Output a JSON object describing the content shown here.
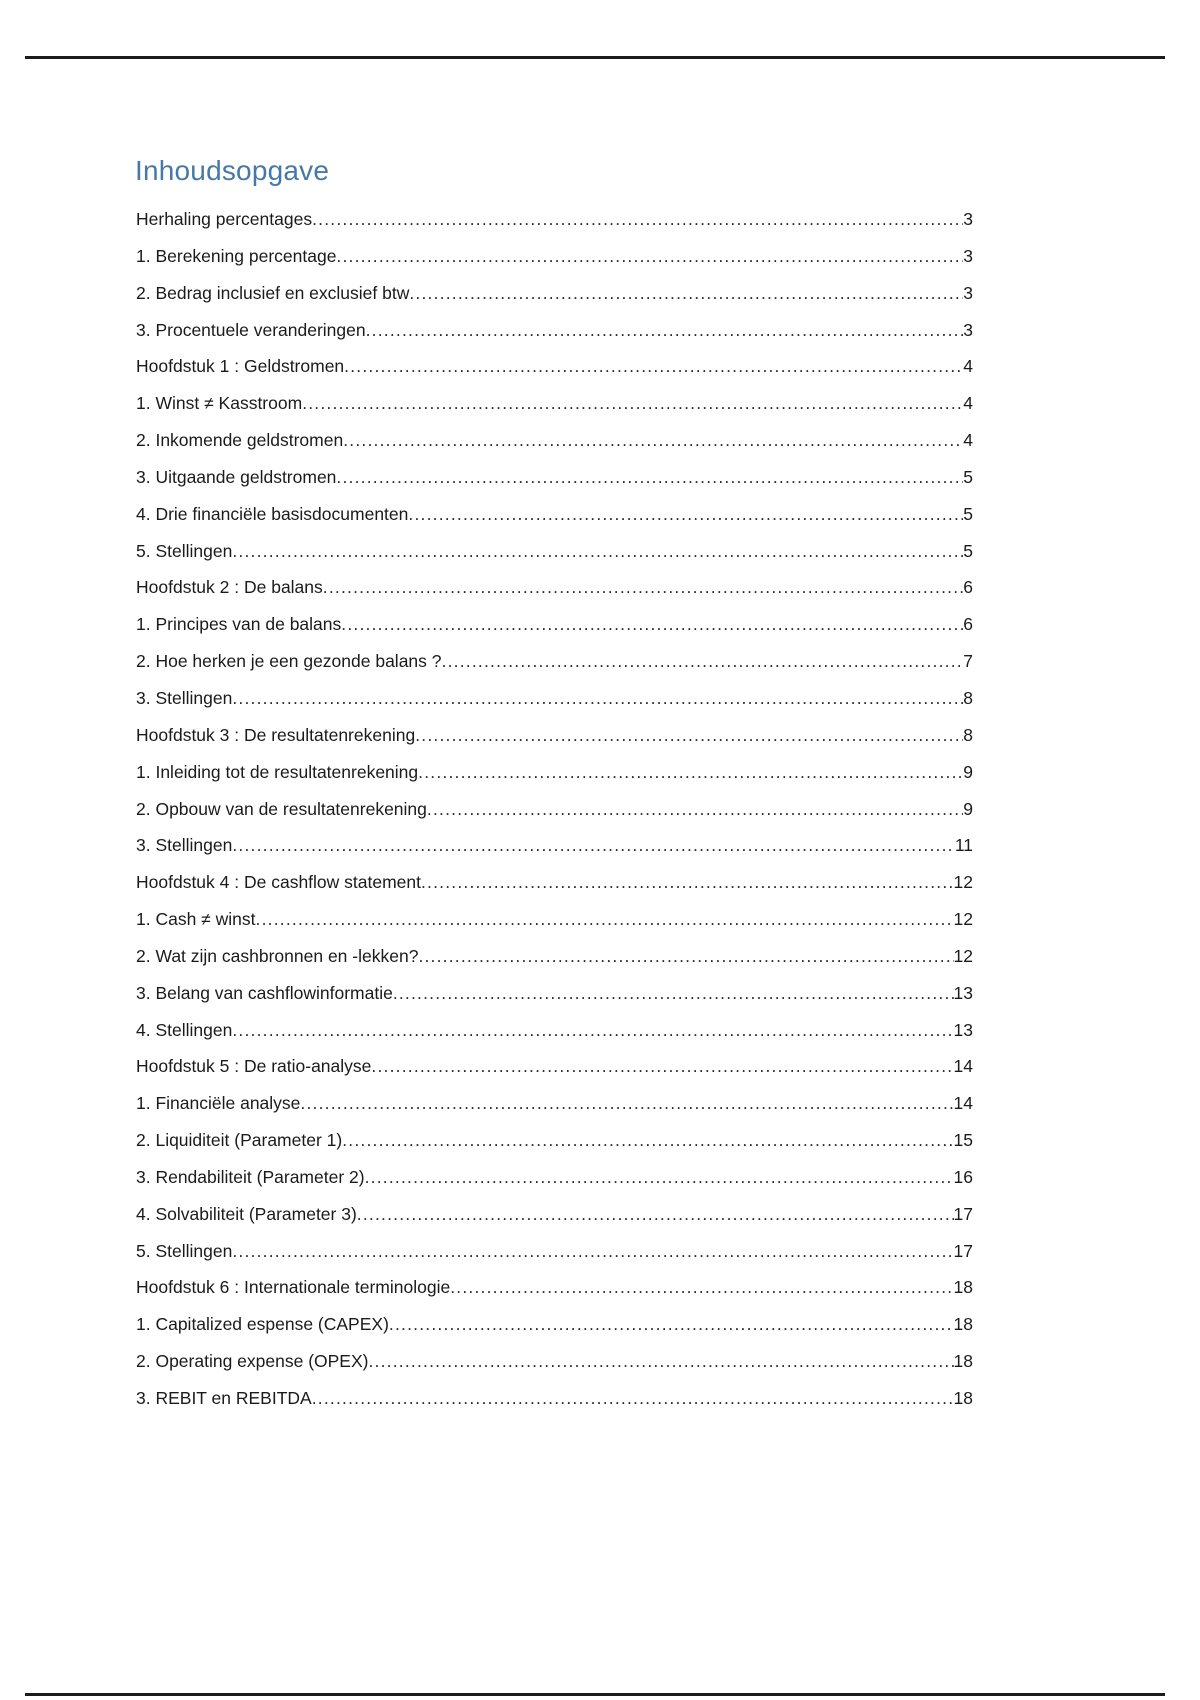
{
  "page": {
    "title": "Inhoudsopgave",
    "title_color": "#4678A8",
    "text_color": "#1b1b1b",
    "rule_color": "#1c1c1c"
  },
  "toc": {
    "entries": [
      {
        "label": "Herhaling percentages",
        "page": "3"
      },
      {
        "label": "1. Berekening percentage",
        "page": "3"
      },
      {
        "label": "2. Bedrag inclusief en exclusief btw",
        "page": "3"
      },
      {
        "label": "3. Procentuele veranderingen",
        "page": "3"
      },
      {
        "label": "Hoofdstuk 1 : Geldstromen",
        "page": "4"
      },
      {
        "label": "1. Winst ≠ Kasstroom",
        "page": "4"
      },
      {
        "label": "2. Inkomende geldstromen",
        "page": "4"
      },
      {
        "label": "3. Uitgaande geldstromen",
        "page": "5"
      },
      {
        "label": "4. Drie financiële basisdocumenten",
        "page": "5"
      },
      {
        "label": "5. Stellingen",
        "page": "5"
      },
      {
        "label": "Hoofdstuk 2 : De balans",
        "page": "6"
      },
      {
        "label": "1. Principes van de balans",
        "page": "6"
      },
      {
        "label": "2. Hoe herken je een gezonde balans ?",
        "page": "7"
      },
      {
        "label": "3. Stellingen",
        "page": "8"
      },
      {
        "label": "Hoofdstuk 3 : De resultatenrekening",
        "page": "8"
      },
      {
        "label": "1. Inleiding tot de resultatenrekening",
        "page": "9"
      },
      {
        "label": "2. Opbouw van de resultatenrekening",
        "page": "9"
      },
      {
        "label": "3. Stellingen",
        "page": "11"
      },
      {
        "label": "Hoofdstuk 4 : De cashflow statement",
        "page": "12"
      },
      {
        "label": "1. Cash ≠ winst",
        "page": "12"
      },
      {
        "label": "2. Wat zijn cashbronnen en -lekken?",
        "page": "12"
      },
      {
        "label": "3. Belang van cashflowinformatie",
        "page": "13"
      },
      {
        "label": "4. Stellingen",
        "page": "13"
      },
      {
        "label": "Hoofdstuk 5 : De ratio-analyse",
        "page": "14"
      },
      {
        "label": "1. Financiële analyse",
        "page": "14"
      },
      {
        "label": "2. Liquiditeit (Parameter 1)",
        "page": "15"
      },
      {
        "label": "3. Rendabiliteit (Parameter 2)",
        "page": "16"
      },
      {
        "label": "4. Solvabiliteit (Parameter 3)",
        "page": "17"
      },
      {
        "label": "5. Stellingen",
        "page": "17"
      },
      {
        "label": "Hoofdstuk 6 : Internationale terminologie",
        "page": "18"
      },
      {
        "label": "1. Capitalized espense (CAPEX)",
        "page": "18"
      },
      {
        "label": "2. Operating expense (OPEX)",
        "page": "18"
      },
      {
        "label": "3. REBIT en REBITDA",
        "page": "18"
      }
    ]
  }
}
